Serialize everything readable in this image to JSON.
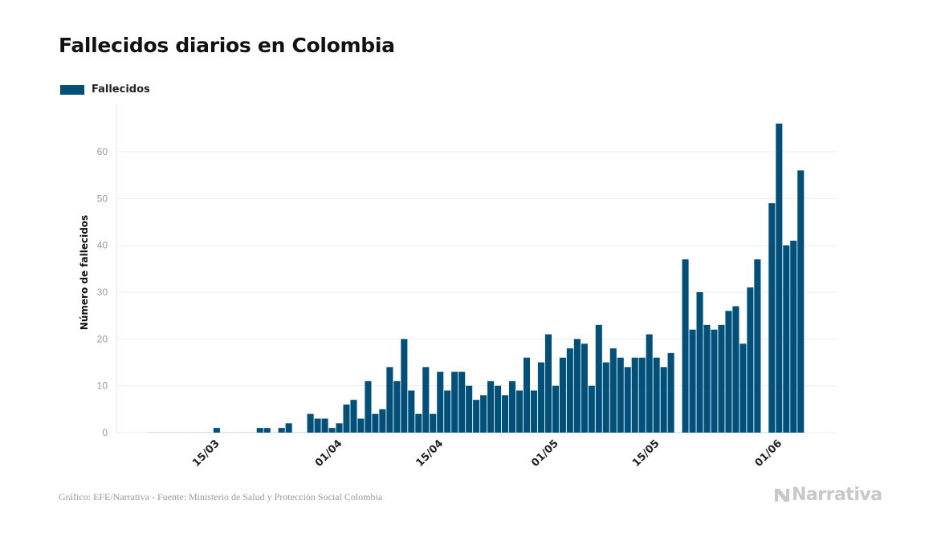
{
  "header": {
    "title": "Fallecidos diarios en Colombia"
  },
  "legend": {
    "label": "Fallecidos",
    "color": "#00507A"
  },
  "footer": {
    "source": "Gráfico: EFE/Narrativa - Fuente: Ministerio de Salud y Protección Social Colombia",
    "brand": "Narrativa",
    "brand_icon": "narrativa-n-logo"
  },
  "chart_data": {
    "type": "bar",
    "ylabel": "Número de fallecidos",
    "xlabel": "",
    "ylim": [
      0,
      70
    ],
    "yticks": [
      0,
      10,
      20,
      30,
      40,
      50,
      60
    ],
    "grid": true,
    "legend_position": "top-left",
    "bar_color": "#00507A",
    "x_ticks": [
      {
        "label": "15/03",
        "index": 9
      },
      {
        "label": "01/04",
        "index": 26
      },
      {
        "label": "15/04",
        "index": 40
      },
      {
        "label": "01/05",
        "index": 56
      },
      {
        "label": "15/05",
        "index": 70
      },
      {
        "label": "01/06",
        "index": 87
      }
    ],
    "series": [
      {
        "name": "Fallecidos",
        "values": [
          0,
          0,
          0,
          0,
          0,
          0,
          0,
          0,
          0,
          1,
          0,
          0,
          0,
          0,
          0,
          1,
          1,
          0,
          1,
          2,
          0,
          0,
          4,
          3,
          3,
          1,
          2,
          6,
          7,
          3,
          11,
          4,
          5,
          14,
          11,
          20,
          9,
          4,
          14,
          4,
          13,
          9,
          13,
          13,
          10,
          7,
          8,
          11,
          10,
          8,
          11,
          9,
          16,
          9,
          15,
          21,
          10,
          16,
          18,
          20,
          19,
          10,
          23,
          15,
          18,
          16,
          14,
          16,
          16,
          21,
          16,
          14,
          17,
          0,
          37,
          22,
          30,
          23,
          22,
          23,
          26,
          27,
          19,
          31,
          37,
          0,
          49,
          66,
          40,
          41,
          56
        ]
      }
    ]
  }
}
